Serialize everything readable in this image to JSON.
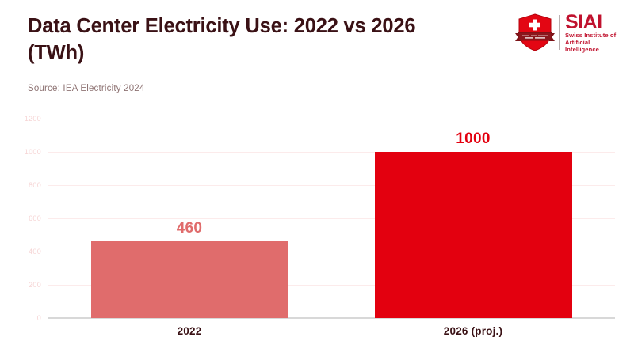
{
  "header": {
    "title_line1": "Data Center Electricity Use: 2022 vs 2026",
    "title_line2": "(TWh)",
    "source": "Source: IEA Electricity 2024"
  },
  "logo": {
    "acronym": "SIAI",
    "name_line1": "Swiss Institute of",
    "name_line2": "Artificial Intelligence"
  },
  "chart_data": {
    "type": "bar",
    "title": "Data Center Electricity Use: 2022 vs 2026 (TWh)",
    "categories": [
      "2022",
      "2026 (proj.)"
    ],
    "values": [
      460,
      1000
    ],
    "value_labels": [
      "460",
      "1000"
    ],
    "bar_colors": [
      "#e06c6c",
      "#e3000f"
    ],
    "label_colors": [
      "#e06c6c",
      "#e3000f"
    ],
    "xlabel": "",
    "ylabel": "",
    "ylim": [
      0,
      1200
    ],
    "yticks": [
      0,
      200,
      400,
      600,
      800,
      1000,
      1200
    ],
    "grid": true,
    "legend": "none"
  },
  "colors": {
    "title_text": "#3a1115",
    "source_text": "#8e7373",
    "gridline": "#fcebeb",
    "baseline": "#d8d8d8",
    "tick_label": "#f6d4d4",
    "accent_red": "#e3000f",
    "accent_salmon": "#e06c6c",
    "logo_red": "#c0122e"
  }
}
